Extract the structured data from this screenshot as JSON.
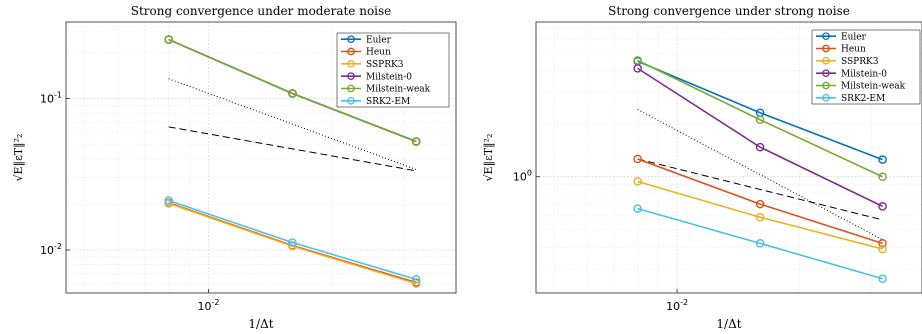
{
  "colors": {
    "euler": "#0072BD",
    "heun": "#D95319",
    "ssprk3": "#EDB120",
    "milstein0": "#7E2F8E",
    "milsteinweak": "#77AC30",
    "srk2em": "#4DBEEE"
  },
  "chart_data": [
    {
      "type": "line",
      "title": "Strong convergence under moderate noise",
      "xlabel": "1/Δt",
      "ylabel": "√E‖εT‖²₂",
      "xscale": "log",
      "yscale": "log",
      "xlim": [
        0.0045,
        0.04
      ],
      "ylim": [
        0.0052,
        0.32
      ],
      "grid": true,
      "legend_position": "top-right",
      "xtick_labels": [
        "10^-2"
      ],
      "ytick_labels": [
        "10^-2",
        "10^-1"
      ],
      "x": [
        0.008,
        0.016,
        0.032
      ],
      "series": [
        {
          "name": "Euler",
          "color_key": "euler",
          "values": [
            0.245,
            0.108,
            0.052
          ]
        },
        {
          "name": "Heun",
          "color_key": "heun",
          "values": [
            0.0205,
            0.0107,
            0.0061
          ]
        },
        {
          "name": "SSPRK3",
          "color_key": "ssprk3",
          "values": [
            0.0203,
            0.0106,
            0.006
          ]
        },
        {
          "name": "Milstein-0",
          "color_key": "milstein0",
          "values": [
            0.245,
            0.108,
            0.052
          ]
        },
        {
          "name": "Milstein-weak",
          "color_key": "milsteinweak",
          "values": [
            0.245,
            0.108,
            0.052
          ]
        },
        {
          "name": "SRK2-EM",
          "color_key": "srk2em",
          "values": [
            0.0212,
            0.0112,
            0.0064
          ]
        }
      ],
      "reference_lines": [
        {
          "style": "dotted",
          "x": [
            0.008,
            0.032
          ],
          "values": [
            0.135,
            0.034
          ]
        },
        {
          "style": "dashed",
          "x": [
            0.008,
            0.032
          ],
          "values": [
            0.065,
            0.0333
          ]
        }
      ]
    },
    {
      "type": "line",
      "title": "Strong convergence under strong noise",
      "xlabel": "1/Δt",
      "ylabel": "√E‖εT‖²₂",
      "xscale": "log",
      "yscale": "log",
      "xlim": [
        0.0045,
        0.04
      ],
      "ylim": [
        0.22,
        7.5
      ],
      "grid": true,
      "legend_position": "top-right",
      "xtick_labels": [
        "10^-2"
      ],
      "ytick_labels": [
        "10^0"
      ],
      "x": [
        0.008,
        0.016,
        0.032
      ],
      "series": [
        {
          "name": "Euler",
          "color_key": "euler",
          "values": [
            4.5,
            2.3,
            1.25
          ]
        },
        {
          "name": "Heun",
          "color_key": "heun",
          "values": [
            1.26,
            0.7,
            0.42
          ]
        },
        {
          "name": "SSPRK3",
          "color_key": "ssprk3",
          "values": [
            0.94,
            0.59,
            0.39
          ]
        },
        {
          "name": "Milstein-0",
          "color_key": "milstein0",
          "values": [
            4.1,
            1.47,
            0.68
          ]
        },
        {
          "name": "Milstein-weak",
          "color_key": "milsteinweak",
          "values": [
            4.55,
            2.1,
            1.0
          ]
        },
        {
          "name": "SRK2-EM",
          "color_key": "srk2em",
          "values": [
            0.66,
            0.42,
            0.265
          ]
        }
      ],
      "reference_lines": [
        {
          "style": "dotted",
          "x": [
            0.008,
            0.032
          ],
          "values": [
            2.4,
            0.44
          ]
        },
        {
          "style": "dashed",
          "x": [
            0.008,
            0.032
          ],
          "values": [
            1.26,
            0.57
          ]
        }
      ]
    }
  ]
}
